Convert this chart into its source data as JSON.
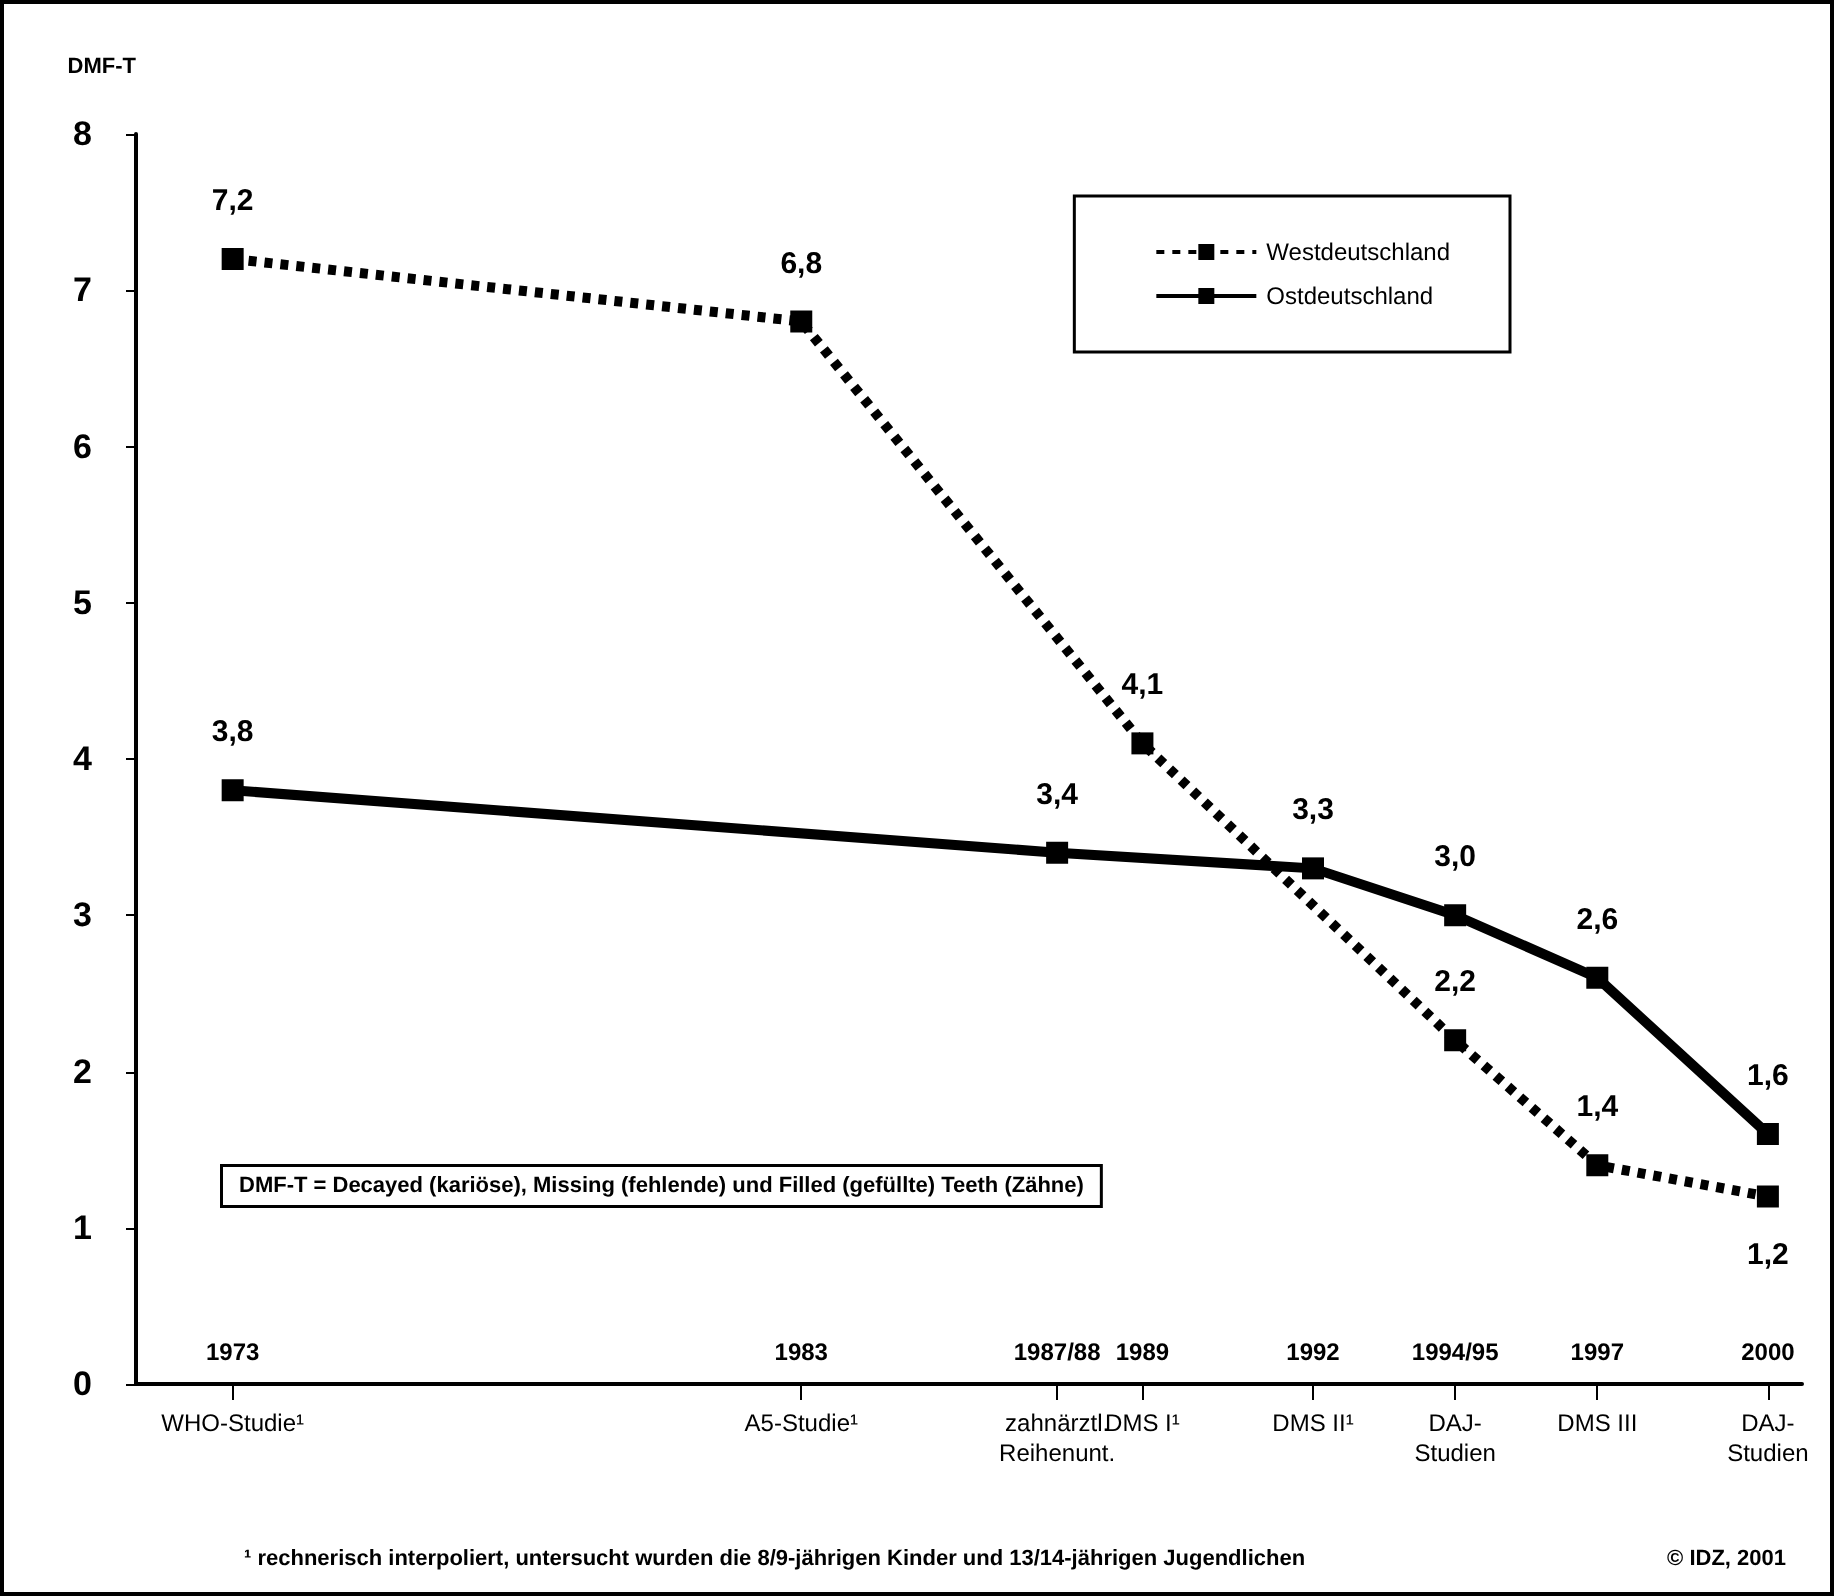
{
  "chart_data": {
    "type": "line",
    "ylabel": "DMF-T",
    "xlim": [
      1971.3,
      2000.6
    ],
    "ylim": [
      0,
      8
    ],
    "yticks": [
      0,
      1,
      2,
      3,
      4,
      5,
      6,
      7,
      8
    ],
    "xticks": [
      1973,
      1983,
      {
        "value": 1987.5,
        "label": "1987/88"
      },
      1989,
      1992,
      {
        "value": 1994.5,
        "label": "1994/95"
      },
      1997,
      2000
    ],
    "series": [
      {
        "name": "Westdeutschland",
        "color": "#000000",
        "line_style": "dotted",
        "x": [
          1973,
          1983,
          1989,
          1994.5,
          1997,
          2000
        ],
        "values": [
          7.2,
          6.8,
          4.1,
          2.2,
          1.4,
          1.2
        ],
        "value_labels": [
          "7,2",
          "6,8",
          "4,1",
          "2,2",
          "1,4",
          "1,2"
        ]
      },
      {
        "name": "Ostdeutschland",
        "color": "#000000",
        "line_style": "solid",
        "x": [
          1973,
          1987.5,
          1992,
          1994.5,
          1997,
          2000
        ],
        "values": [
          3.8,
          3.4,
          3.3,
          3.0,
          2.6,
          1.6
        ],
        "value_labels": [
          "3,8",
          "3,4",
          "3,3",
          "3,0",
          "2,6",
          "1,6"
        ]
      }
    ],
    "marker": "square",
    "grid": false,
    "legend": "top right",
    "annotations": [
      "DMF-T = Decayed (kariöse), Missing (fehlende) und Filled (gefüllte) Teeth (Zähne)",
      "¹ rechnerisch interpoliert, untersucht wurden die 8/9-jährigen Kinder und 13/14-jährigen Jugendlichen",
      "© IDZ, 2001",
      "WHO-Studie¹",
      "A5-Studie¹",
      "zahnärztl.\nReihenunt.",
      "DMS I¹",
      "DMS II¹",
      "DAJ-\nStudien",
      "DMS III",
      "DAJ-\nStudien"
    ]
  }
}
